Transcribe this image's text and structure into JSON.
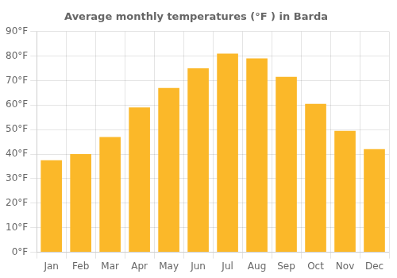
{
  "chart_data": {
    "type": "bar",
    "title": "Average monthly temperatures (°F ) in Barda",
    "categories": [
      "Jan",
      "Feb",
      "Mar",
      "Apr",
      "May",
      "Jun",
      "Jul",
      "Aug",
      "Sep",
      "Oct",
      "Nov",
      "Dec"
    ],
    "values": [
      37.5,
      40.0,
      47.0,
      59.0,
      67.0,
      75.0,
      81.0,
      79.0,
      71.5,
      60.5,
      49.5,
      42.0
    ],
    "color": "#FBB829",
    "ylim": [
      0,
      90
    ],
    "yticks": [
      {
        "value": 0,
        "label": "0°F"
      },
      {
        "value": 10,
        "label": "10°F"
      },
      {
        "value": 20,
        "label": "20°F"
      },
      {
        "value": 30,
        "label": "30°F"
      },
      {
        "value": 40,
        "label": "40°F"
      },
      {
        "value": 50,
        "label": "50°F"
      },
      {
        "value": 60,
        "label": "60°F"
      },
      {
        "value": 70,
        "label": "70°F"
      },
      {
        "value": 80,
        "label": "80°F"
      },
      {
        "value": 90,
        "label": "90°F"
      }
    ],
    "grid": true
  }
}
